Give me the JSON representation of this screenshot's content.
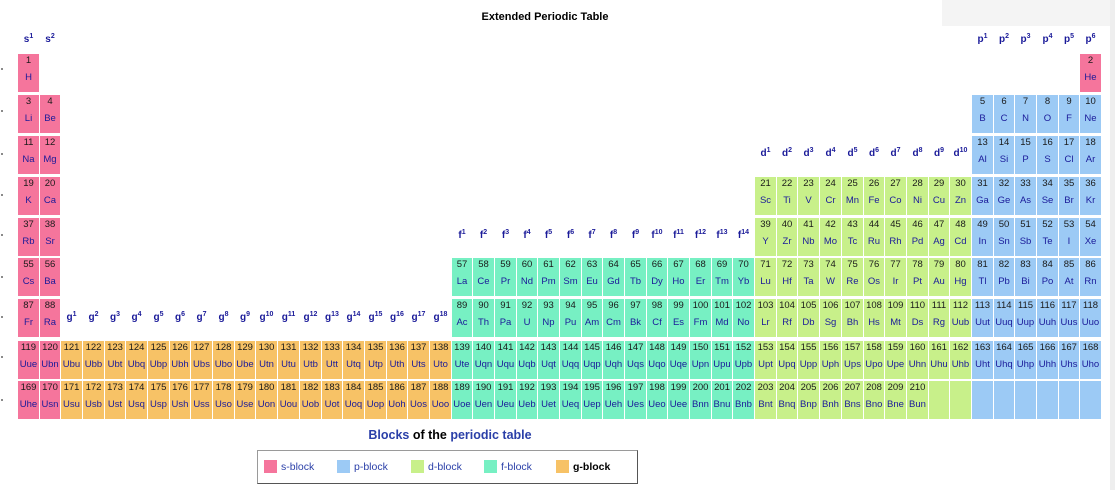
{
  "title": "Extended Periodic Table",
  "caption": {
    "part1": "Blocks",
    "part2": " of the ",
    "part3": "periodic table"
  },
  "legend": [
    {
      "label": "s-block",
      "color": "#f5759c"
    },
    {
      "label": "p-block",
      "color": "#9ccaf5"
    },
    {
      "label": "d-block",
      "color": "#c8f08a"
    },
    {
      "label": "f-block",
      "color": "#77f0c3"
    },
    {
      "label": "g-block",
      "color": "#f7c266"
    }
  ],
  "block_colors": {
    "s": "#f5759c",
    "p": "#9ccaf5",
    "d": "#c8f08a",
    "f": "#77f0c3",
    "g": "#f7c266"
  },
  "elements": [
    [
      "1",
      "H",
      "s"
    ],
    [
      "2",
      "He",
      "s"
    ],
    [
      "3",
      "Li",
      "s"
    ],
    [
      "4",
      "Be",
      "s"
    ],
    [
      "5",
      "B",
      "p"
    ],
    [
      "6",
      "C",
      "p"
    ],
    [
      "7",
      "N",
      "p"
    ],
    [
      "8",
      "O",
      "p"
    ],
    [
      "9",
      "F",
      "p"
    ],
    [
      "10",
      "Ne",
      "p"
    ],
    [
      "11",
      "Na",
      "s"
    ],
    [
      "12",
      "Mg",
      "s"
    ],
    [
      "13",
      "Al",
      "p"
    ],
    [
      "14",
      "Si",
      "p"
    ],
    [
      "15",
      "P",
      "p"
    ],
    [
      "16",
      "S",
      "p"
    ],
    [
      "17",
      "Cl",
      "p"
    ],
    [
      "18",
      "Ar",
      "p"
    ],
    [
      "19",
      "K",
      "s"
    ],
    [
      "20",
      "Ca",
      "s"
    ],
    [
      "21",
      "Sc",
      "d"
    ],
    [
      "22",
      "Ti",
      "d"
    ],
    [
      "23",
      "V",
      "d"
    ],
    [
      "24",
      "Cr",
      "d"
    ],
    [
      "25",
      "Mn",
      "d"
    ],
    [
      "26",
      "Fe",
      "d"
    ],
    [
      "27",
      "Co",
      "d"
    ],
    [
      "28",
      "Ni",
      "d"
    ],
    [
      "29",
      "Cu",
      "d"
    ],
    [
      "30",
      "Zn",
      "d"
    ],
    [
      "31",
      "Ga",
      "p"
    ],
    [
      "32",
      "Ge",
      "p"
    ],
    [
      "33",
      "As",
      "p"
    ],
    [
      "34",
      "Se",
      "p"
    ],
    [
      "35",
      "Br",
      "p"
    ],
    [
      "36",
      "Kr",
      "p"
    ],
    [
      "37",
      "Rb",
      "s"
    ],
    [
      "38",
      "Sr",
      "s"
    ],
    [
      "39",
      "Y",
      "d"
    ],
    [
      "40",
      "Zr",
      "d"
    ],
    [
      "41",
      "Nb",
      "d"
    ],
    [
      "42",
      "Mo",
      "d"
    ],
    [
      "43",
      "Tc",
      "d"
    ],
    [
      "44",
      "Ru",
      "d"
    ],
    [
      "45",
      "Rh",
      "d"
    ],
    [
      "46",
      "Pd",
      "d"
    ],
    [
      "47",
      "Ag",
      "d"
    ],
    [
      "48",
      "Cd",
      "d"
    ],
    [
      "49",
      "In",
      "p"
    ],
    [
      "50",
      "Sn",
      "p"
    ],
    [
      "51",
      "Sb",
      "p"
    ],
    [
      "52",
      "Te",
      "p"
    ],
    [
      "53",
      "I",
      "p"
    ],
    [
      "54",
      "Xe",
      "p"
    ],
    [
      "55",
      "Cs",
      "s"
    ],
    [
      "56",
      "Ba",
      "s"
    ],
    [
      "57",
      "La",
      "f"
    ],
    [
      "58",
      "Ce",
      "f"
    ],
    [
      "59",
      "Pr",
      "f"
    ],
    [
      "60",
      "Nd",
      "f"
    ],
    [
      "61",
      "Pm",
      "f"
    ],
    [
      "62",
      "Sm",
      "f"
    ],
    [
      "63",
      "Eu",
      "f"
    ],
    [
      "64",
      "Gd",
      "f"
    ],
    [
      "65",
      "Tb",
      "f"
    ],
    [
      "66",
      "Dy",
      "f"
    ],
    [
      "67",
      "Ho",
      "f"
    ],
    [
      "68",
      "Er",
      "f"
    ],
    [
      "69",
      "Tm",
      "f"
    ],
    [
      "70",
      "Yb",
      "f"
    ],
    [
      "71",
      "Lu",
      "d"
    ],
    [
      "72",
      "Hf",
      "d"
    ],
    [
      "73",
      "Ta",
      "d"
    ],
    [
      "74",
      "W",
      "d"
    ],
    [
      "75",
      "Re",
      "d"
    ],
    [
      "76",
      "Os",
      "d"
    ],
    [
      "77",
      "Ir",
      "d"
    ],
    [
      "78",
      "Pt",
      "d"
    ],
    [
      "79",
      "Au",
      "d"
    ],
    [
      "80",
      "Hg",
      "d"
    ],
    [
      "81",
      "Tl",
      "p"
    ],
    [
      "82",
      "Pb",
      "p"
    ],
    [
      "83",
      "Bi",
      "p"
    ],
    [
      "84",
      "Po",
      "p"
    ],
    [
      "85",
      "At",
      "p"
    ],
    [
      "86",
      "Rn",
      "p"
    ],
    [
      "87",
      "Fr",
      "s"
    ],
    [
      "88",
      "Ra",
      "s"
    ],
    [
      "89",
      "Ac",
      "f"
    ],
    [
      "90",
      "Th",
      "f"
    ],
    [
      "91",
      "Pa",
      "f"
    ],
    [
      "92",
      "U",
      "f"
    ],
    [
      "93",
      "Np",
      "f"
    ],
    [
      "94",
      "Pu",
      "f"
    ],
    [
      "95",
      "Am",
      "f"
    ],
    [
      "96",
      "Cm",
      "f"
    ],
    [
      "97",
      "Bk",
      "f"
    ],
    [
      "98",
      "Cf",
      "f"
    ],
    [
      "99",
      "Es",
      "f"
    ],
    [
      "100",
      "Fm",
      "f"
    ],
    [
      "101",
      "Md",
      "f"
    ],
    [
      "102",
      "No",
      "f"
    ],
    [
      "103",
      "Lr",
      "d"
    ],
    [
      "104",
      "Rf",
      "d"
    ],
    [
      "105",
      "Db",
      "d"
    ],
    [
      "106",
      "Sg",
      "d"
    ],
    [
      "107",
      "Bh",
      "d"
    ],
    [
      "108",
      "Hs",
      "d"
    ],
    [
      "109",
      "Mt",
      "d"
    ],
    [
      "110",
      "Ds",
      "d"
    ],
    [
      "111",
      "Rg",
      "d"
    ],
    [
      "112",
      "Uub",
      "d"
    ],
    [
      "113",
      "Uut",
      "p"
    ],
    [
      "114",
      "Uuq",
      "p"
    ],
    [
      "115",
      "Uup",
      "p"
    ],
    [
      "116",
      "Uuh",
      "p"
    ],
    [
      "117",
      "Uus",
      "p"
    ],
    [
      "118",
      "Uuo",
      "p"
    ],
    [
      "119",
      "Uue",
      "s"
    ],
    [
      "120",
      "Ubn",
      "s"
    ],
    [
      "121",
      "Ubu",
      "g"
    ],
    [
      "122",
      "Ubb",
      "g"
    ],
    [
      "123",
      "Ubt",
      "g"
    ],
    [
      "124",
      "Ubq",
      "g"
    ],
    [
      "125",
      "Ubp",
      "g"
    ],
    [
      "126",
      "Ubh",
      "g"
    ],
    [
      "127",
      "Ubs",
      "g"
    ],
    [
      "128",
      "Ubo",
      "g"
    ],
    [
      "129",
      "Ube",
      "g"
    ],
    [
      "130",
      "Utn",
      "g"
    ],
    [
      "131",
      "Utu",
      "g"
    ],
    [
      "132",
      "Utb",
      "g"
    ],
    [
      "133",
      "Utt",
      "g"
    ],
    [
      "134",
      "Utq",
      "g"
    ],
    [
      "135",
      "Utp",
      "g"
    ],
    [
      "136",
      "Uth",
      "g"
    ],
    [
      "137",
      "Uts",
      "g"
    ],
    [
      "138",
      "Uto",
      "g"
    ],
    [
      "139",
      "Ute",
      "f"
    ],
    [
      "140",
      "Uqn",
      "f"
    ],
    [
      "141",
      "Uqu",
      "f"
    ],
    [
      "142",
      "Uqb",
      "f"
    ],
    [
      "143",
      "Uqt",
      "f"
    ],
    [
      "144",
      "Uqq",
      "f"
    ],
    [
      "145",
      "Uqp",
      "f"
    ],
    [
      "146",
      "Uqh",
      "f"
    ],
    [
      "147",
      "Uqs",
      "f"
    ],
    [
      "148",
      "Uqo",
      "f"
    ],
    [
      "149",
      "Uqe",
      "f"
    ],
    [
      "150",
      "Upn",
      "f"
    ],
    [
      "151",
      "Upu",
      "f"
    ],
    [
      "152",
      "Upb",
      "f"
    ],
    [
      "153",
      "Upt",
      "d"
    ],
    [
      "154",
      "Upq",
      "d"
    ],
    [
      "155",
      "Upp",
      "d"
    ],
    [
      "156",
      "Uph",
      "d"
    ],
    [
      "157",
      "Ups",
      "d"
    ],
    [
      "158",
      "Upo",
      "d"
    ],
    [
      "159",
      "Upe",
      "d"
    ],
    [
      "160",
      "Uhn",
      "d"
    ],
    [
      "161",
      "Uhu",
      "d"
    ],
    [
      "162",
      "Uhb",
      "d"
    ],
    [
      "163",
      "Uht",
      "p"
    ],
    [
      "164",
      "Uhq",
      "p"
    ],
    [
      "165",
      "Uhp",
      "p"
    ],
    [
      "166",
      "Uhh",
      "p"
    ],
    [
      "167",
      "Uhs",
      "p"
    ],
    [
      "168",
      "Uho",
      "p"
    ],
    [
      "169",
      "Uhe",
      "s"
    ],
    [
      "170",
      "Usn",
      "s"
    ],
    [
      "171",
      "Usu",
      "g"
    ],
    [
      "172",
      "Usb",
      "g"
    ],
    [
      "173",
      "Ust",
      "g"
    ],
    [
      "174",
      "Usq",
      "g"
    ],
    [
      "175",
      "Usp",
      "g"
    ],
    [
      "176",
      "Ush",
      "g"
    ],
    [
      "177",
      "Uss",
      "g"
    ],
    [
      "178",
      "Uso",
      "g"
    ],
    [
      "179",
      "Use",
      "g"
    ],
    [
      "180",
      "Uon",
      "g"
    ],
    [
      "181",
      "Uou",
      "g"
    ],
    [
      "182",
      "Uob",
      "g"
    ],
    [
      "183",
      "Uot",
      "g"
    ],
    [
      "184",
      "Uoq",
      "g"
    ],
    [
      "185",
      "Uop",
      "g"
    ],
    [
      "186",
      "Uoh",
      "g"
    ],
    [
      "187",
      "Uos",
      "g"
    ],
    [
      "188",
      "Uoo",
      "g"
    ],
    [
      "189",
      "Uoe",
      "f"
    ],
    [
      "190",
      "Uen",
      "f"
    ],
    [
      "191",
      "Ueu",
      "f"
    ],
    [
      "192",
      "Ueb",
      "f"
    ],
    [
      "193",
      "Uet",
      "f"
    ],
    [
      "194",
      "Ueq",
      "f"
    ],
    [
      "195",
      "Uep",
      "f"
    ],
    [
      "196",
      "Ueh",
      "f"
    ],
    [
      "197",
      "Ues",
      "f"
    ],
    [
      "198",
      "Ueo",
      "f"
    ],
    [
      "199",
      "Uee",
      "f"
    ],
    [
      "200",
      "Bnn",
      "f"
    ],
    [
      "201",
      "Bnu",
      "f"
    ],
    [
      "202",
      "Bnb",
      "f"
    ],
    [
      "203",
      "Bnt",
      "d"
    ],
    [
      "204",
      "Bnq",
      "d"
    ],
    [
      "205",
      "Bnp",
      "d"
    ],
    [
      "206",
      "Bnh",
      "d"
    ],
    [
      "207",
      "Bns",
      "d"
    ],
    [
      "208",
      "Bno",
      "d"
    ],
    [
      "209",
      "Bne",
      "d"
    ],
    [
      "210",
      "Bun",
      "d"
    ],
    [
      "",
      "",
      "d"
    ],
    [
      "",
      "",
      "d"
    ],
    [
      "",
      "",
      "p"
    ],
    [
      "",
      "",
      "p"
    ],
    [
      "",
      "",
      "p"
    ],
    [
      "",
      "",
      "p"
    ],
    [
      "",
      "",
      "p"
    ],
    [
      "",
      "",
      "p"
    ]
  ],
  "labels": {
    "s": [
      [
        "s",
        "1"
      ],
      [
        "s",
        "2"
      ]
    ],
    "p": [
      [
        "p",
        "1"
      ],
      [
        "p",
        "2"
      ],
      [
        "p",
        "3"
      ],
      [
        "p",
        "4"
      ],
      [
        "p",
        "5"
      ],
      [
        "p",
        "6"
      ]
    ],
    "d": [
      [
        "d",
        "1"
      ],
      [
        "d",
        "2"
      ],
      [
        "d",
        "3"
      ],
      [
        "d",
        "4"
      ],
      [
        "d",
        "5"
      ],
      [
        "d",
        "6"
      ],
      [
        "d",
        "7"
      ],
      [
        "d",
        "8"
      ],
      [
        "d",
        "9"
      ],
      [
        "d",
        "10"
      ]
    ],
    "f": [
      [
        "f",
        "1"
      ],
      [
        "f",
        "2"
      ],
      [
        "f",
        "3"
      ],
      [
        "f",
        "4"
      ],
      [
        "f",
        "5"
      ],
      [
        "f",
        "6"
      ],
      [
        "f",
        "7"
      ],
      [
        "f",
        "8"
      ],
      [
        "f",
        "9"
      ],
      [
        "f",
        "10"
      ],
      [
        "f",
        "11"
      ],
      [
        "f",
        "12"
      ],
      [
        "f",
        "13"
      ],
      [
        "f",
        "14"
      ]
    ],
    "g": [
      [
        "g",
        "1"
      ],
      [
        "g",
        "2"
      ],
      [
        "g",
        "3"
      ],
      [
        "g",
        "4"
      ],
      [
        "g",
        "5"
      ],
      [
        "g",
        "6"
      ],
      [
        "g",
        "7"
      ],
      [
        "g",
        "8"
      ],
      [
        "g",
        "9"
      ],
      [
        "g",
        "10"
      ],
      [
        "g",
        "11"
      ],
      [
        "g",
        "12"
      ],
      [
        "g",
        "13"
      ],
      [
        "g",
        "14"
      ],
      [
        "g",
        "15"
      ],
      [
        "g",
        "16"
      ],
      [
        "g",
        "17"
      ],
      [
        "g",
        "18"
      ]
    ]
  }
}
